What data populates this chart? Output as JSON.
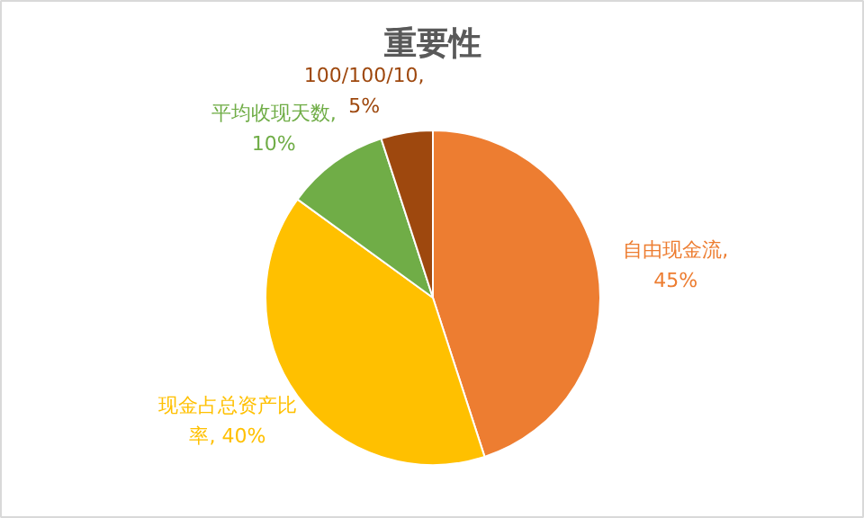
{
  "chart_data": {
    "type": "pie",
    "title": "重要性",
    "categories": [
      "自由现金流",
      "现金占总资产比率",
      "平均收现天数",
      "100/100/10"
    ],
    "values": [
      45,
      40,
      10,
      5
    ],
    "colors": [
      "#ed7d31",
      "#ffc000",
      "#70ad47",
      "#9e480e"
    ],
    "value_labels": [
      ", 45%",
      ", 40%",
      ", 10%",
      ", 5%"
    ]
  }
}
